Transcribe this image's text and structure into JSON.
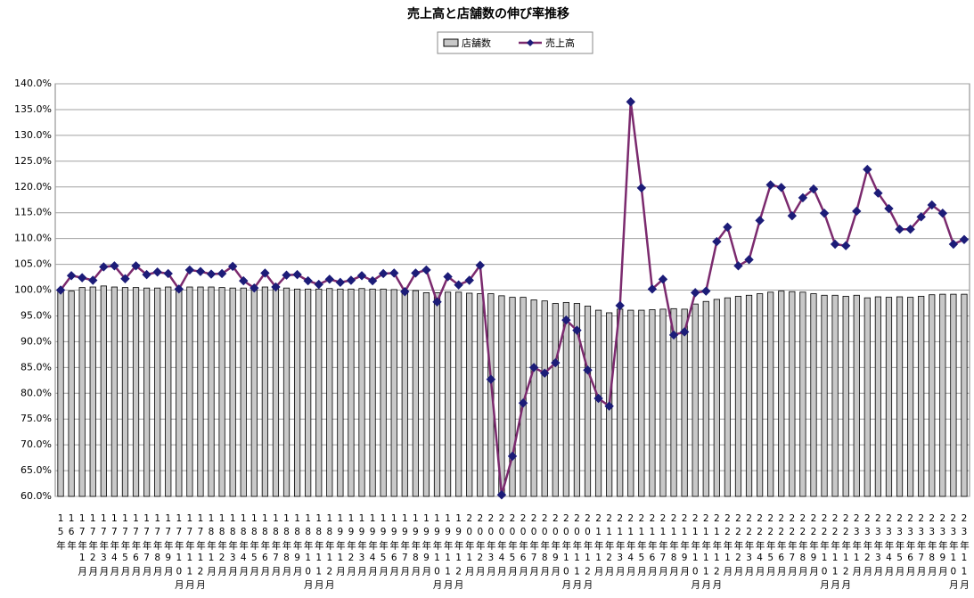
{
  "chart_data": {
    "type": "bar_line",
    "title": "売上高と店舗数の伸び率推移",
    "categories": [
      "15年",
      "16年",
      "17年1月",
      "17年2月",
      "17年3月",
      "17年4月",
      "17年5月",
      "17年6月",
      "17年7月",
      "17年8月",
      "17年9月",
      "17年10月",
      "17年11月",
      "17年12月",
      "18年1月",
      "18年2月",
      "18年3月",
      "18年4月",
      "18年5月",
      "18年6月",
      "18年7月",
      "18年8月",
      "18年9月",
      "18年10月",
      "18年11月",
      "18年12月",
      "19年1月",
      "19年2月",
      "19年3月",
      "19年4月",
      "19年5月",
      "19年6月",
      "19年7月",
      "19年8月",
      "19年9月",
      "19年10月",
      "19年11月",
      "19年12月",
      "20年1月",
      "20年2月",
      "20年3月",
      "20年4月",
      "20年5月",
      "20年6月",
      "20年7月",
      "20年8月",
      "20年9月",
      "20年10月",
      "20年11月",
      "20年12月",
      "21年1月",
      "21年2月",
      "21年3月",
      "21年4月",
      "21年5月",
      "21年6月",
      "21年7月",
      "21年8月",
      "21年9月",
      "21年10月",
      "21年11月",
      "21年12月",
      "22年1月",
      "22年2月",
      "22年3月",
      "22年4月",
      "22年5月",
      "22年6月",
      "22年7月",
      "22年8月",
      "22年9月",
      "22年10月",
      "22年11月",
      "22年12月",
      "23年1月",
      "23年2月",
      "23年3月",
      "23年4月",
      "23年5月",
      "23年6月",
      "23年7月",
      "23年8月",
      "23年9月",
      "23年10月",
      "23年11月"
    ],
    "series": [
      {
        "name": "店舗数",
        "kind": "bar",
        "color": "#c8c8c8",
        "values": [
          100.0,
          99.8,
          100.5,
          100.6,
          100.8,
          100.6,
          100.5,
          100.5,
          100.4,
          100.4,
          100.6,
          100.3,
          100.6,
          100.6,
          100.6,
          100.5,
          100.4,
          100.4,
          100.3,
          100.6,
          100.3,
          100.4,
          100.2,
          100.2,
          100.2,
          100.3,
          100.2,
          100.2,
          100.3,
          100.2,
          100.2,
          100.1,
          100.0,
          99.9,
          99.5,
          99.5,
          99.6,
          99.6,
          99.4,
          99.3,
          99.3,
          98.9,
          98.6,
          98.6,
          98.1,
          97.9,
          97.4,
          97.6,
          97.4,
          96.9,
          96.1,
          95.6,
          96.3,
          96.1,
          96.1,
          96.2,
          96.3,
          96.4,
          96.3,
          97.3,
          97.8,
          98.2,
          98.5,
          98.8,
          99.0,
          99.3,
          99.6,
          99.8,
          99.7,
          99.6,
          99.3,
          99.0,
          99.0,
          98.8,
          99.0,
          98.5,
          98.7,
          98.6,
          98.7,
          98.6,
          98.8,
          99.1,
          99.2,
          99.2,
          99.2
        ]
      },
      {
        "name": "売上高",
        "kind": "line",
        "color": "#7b2a6e",
        "marker_color": "#1c1c78",
        "values": [
          100.0,
          102.8,
          102.4,
          101.9,
          104.5,
          104.7,
          102.2,
          104.7,
          103.0,
          103.5,
          103.2,
          100.2,
          103.9,
          103.6,
          103.1,
          103.2,
          104.6,
          101.8,
          100.4,
          103.3,
          100.6,
          102.9,
          103.0,
          101.8,
          101.1,
          102.1,
          101.5,
          101.9,
          102.8,
          101.8,
          103.2,
          103.3,
          99.7,
          103.3,
          103.9,
          97.7,
          102.6,
          101.0,
          101.9,
          104.8,
          82.7,
          60.3,
          67.8,
          78.1,
          85.0,
          83.9,
          85.9,
          94.2,
          92.2,
          84.5,
          79.0,
          77.5,
          97.0,
          136.5,
          119.8,
          100.2,
          102.1,
          91.3,
          91.9,
          99.5,
          99.8,
          109.4,
          112.2,
          104.7,
          105.9,
          113.5,
          120.4,
          119.9,
          114.4,
          117.9,
          119.6,
          114.9,
          108.9,
          108.6,
          115.3,
          123.4,
          118.8,
          115.8,
          111.8,
          111.8,
          114.2,
          116.5,
          114.9,
          108.9,
          109.8
        ]
      }
    ],
    "ylim": [
      60,
      140
    ],
    "yticks": [
      {
        "value": 60,
        "label": "60.0%"
      },
      {
        "value": 65,
        "label": "65.0%"
      },
      {
        "value": 70,
        "label": "70.0%"
      },
      {
        "value": 75,
        "label": "75.0%"
      },
      {
        "value": 80,
        "label": "80.0%"
      },
      {
        "value": 85,
        "label": "85.0%"
      },
      {
        "value": 90,
        "label": "90.0%"
      },
      {
        "value": 95,
        "label": "95.0%"
      },
      {
        "value": 100,
        "label": "100.0%"
      },
      {
        "value": 105,
        "label": "105.0%"
      },
      {
        "value": 110,
        "label": "110.0%"
      },
      {
        "value": 115,
        "label": "115.0%"
      },
      {
        "value": 120,
        "label": "120.0%"
      },
      {
        "value": 125,
        "label": "125.0%"
      },
      {
        "value": 130,
        "label": "130.0%"
      },
      {
        "value": 135,
        "label": "135.0%"
      },
      {
        "value": 140,
        "label": "140.0%"
      }
    ],
    "grid": true,
    "legend": "top"
  }
}
